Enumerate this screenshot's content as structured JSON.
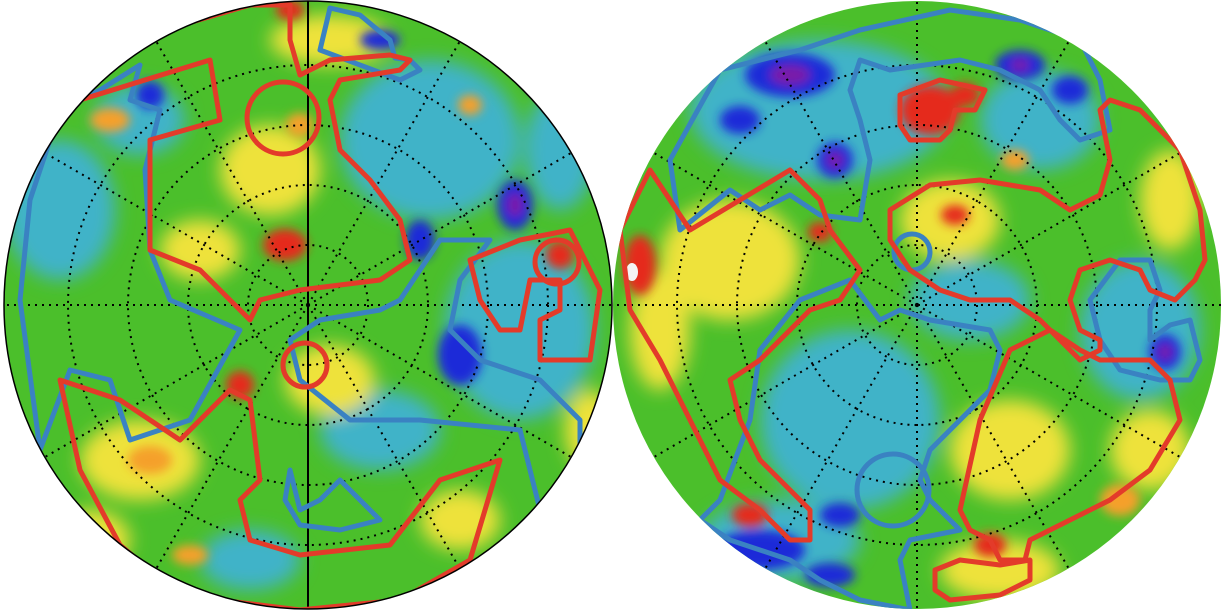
{
  "figure": {
    "kind": "sky-map-pair",
    "projection": "orthographic",
    "colormap": "jet",
    "colors": {
      "background": "#ffffff",
      "graticule": "#000000",
      "cross_axes": "#000000",
      "red_outline": "#e33b2a",
      "blue_outline": "#3a82c2",
      "base_green": "#4bbf2b",
      "deep_blue": "#1a2ad8",
      "purple": "#7a1aa8",
      "cyan": "#2aa8d8",
      "yellow": "#f2e43a",
      "orange": "#f5a02a",
      "red": "#e52a1a",
      "white_spot": "#f4f4f4"
    },
    "hemispheres": [
      {
        "id": "left-hemisphere",
        "graticule": "dotted",
        "outline": true,
        "blue_regions": 4,
        "red_regions": 6
      },
      {
        "id": "right-hemisphere",
        "graticule": "dotted",
        "outline": false,
        "blue_regions": 6,
        "red_regions": 5
      }
    ]
  }
}
